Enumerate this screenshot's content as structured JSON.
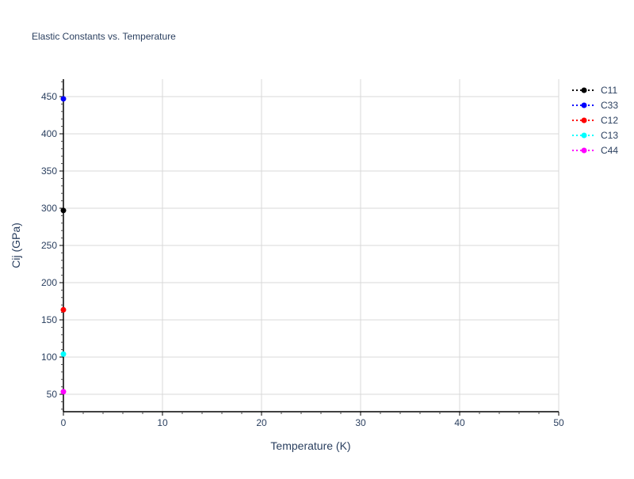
{
  "chart_data": {
    "type": "scatter",
    "mode": "lines+markers",
    "title": "Elastic Constants vs. Temperature",
    "xlabel": "Temperature (K)",
    "ylabel": "Cij (GPa)",
    "xlim": [
      0,
      50
    ],
    "ylim": [
      26.6,
      473.4
    ],
    "xticks": [
      0,
      10,
      20,
      30,
      40,
      50
    ],
    "yticks": [
      50,
      100,
      150,
      200,
      250,
      300,
      350,
      400,
      450
    ],
    "grid": true,
    "legend": "top-right",
    "series": [
      {
        "name": "C11",
        "color": "#000000",
        "x": [
          0
        ],
        "y": [
          297
        ]
      },
      {
        "name": "C33",
        "color": "#0000ff",
        "x": [
          0
        ],
        "y": [
          447
        ]
      },
      {
        "name": "C12",
        "color": "#ff0000",
        "x": [
          0
        ],
        "y": [
          163.5
        ]
      },
      {
        "name": "C13",
        "color": "#00ffff",
        "x": [
          0
        ],
        "y": [
          104
        ]
      },
      {
        "name": "C44",
        "color": "#ff00ff",
        "x": [
          0
        ],
        "y": [
          53.5
        ]
      }
    ]
  }
}
